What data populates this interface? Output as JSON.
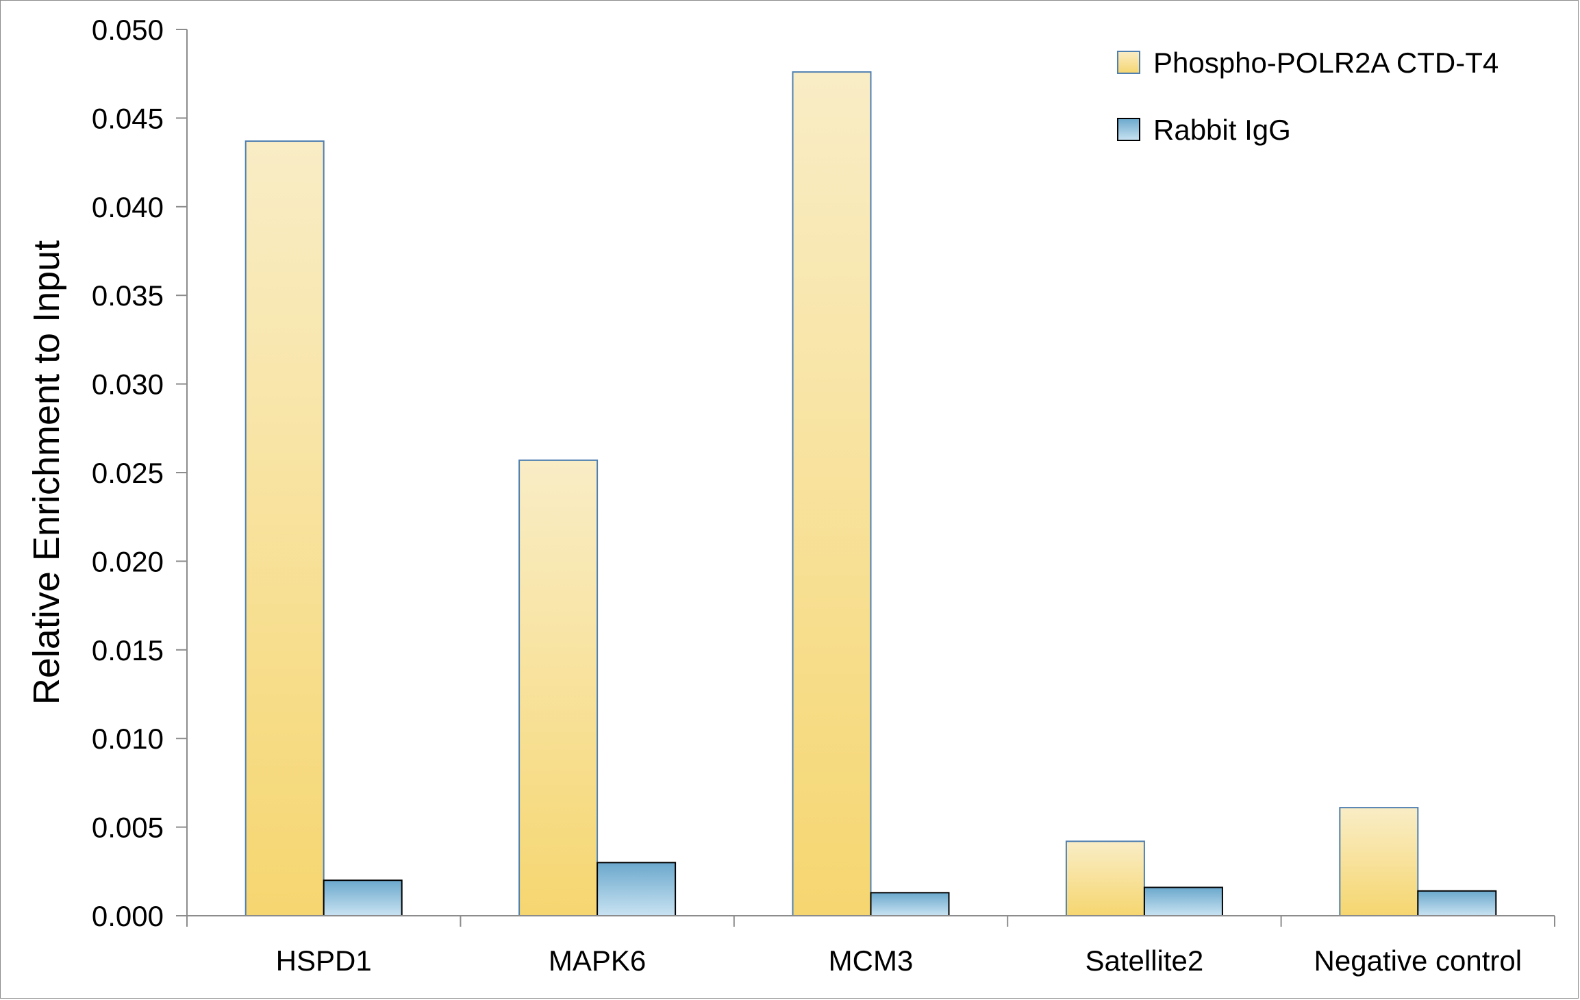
{
  "chart_data": {
    "type": "bar",
    "title": "",
    "xlabel": "",
    "ylabel": "Relative Enrichment to Input",
    "categories": [
      "HSPD1",
      "MAPK6",
      "MCM3",
      "Satellite2",
      "Negative control"
    ],
    "series": [
      {
        "name": "Phospho-POLR2A CTD-T4",
        "values": [
          0.0437,
          0.0257,
          0.0476,
          0.0042,
          0.0061
        ],
        "color_top": "#f9edc6",
        "color_bottom": "#f6d670",
        "stroke": "#4f7fb0"
      },
      {
        "name": "Rabbit IgG",
        "values": [
          0.002,
          0.003,
          0.0013,
          0.0016,
          0.0014
        ],
        "color_top": "#6ba8cc",
        "color_bottom": "#c9e3f2",
        "stroke": "#000000"
      }
    ],
    "ylim": [
      0,
      0.05
    ],
    "yticks": [
      "0.000",
      "0.005",
      "0.010",
      "0.015",
      "0.020",
      "0.025",
      "0.030",
      "0.035",
      "0.040",
      "0.045",
      "0.050"
    ],
    "ytick_values": [
      0,
      0.005,
      0.01,
      0.015,
      0.02,
      0.025,
      0.03,
      0.035,
      0.04,
      0.045,
      0.05
    ],
    "grid": false,
    "legend_position": "top-right"
  }
}
